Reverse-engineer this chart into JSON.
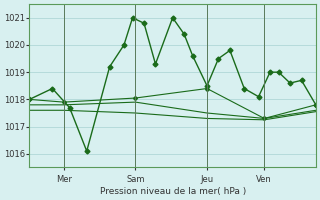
{
  "background_color": "#d8f0f0",
  "grid_color": "#b0d8d8",
  "line_color": "#1a6b1a",
  "ylim": [
    1015.5,
    1021.5
  ],
  "yticks": [
    1016,
    1017,
    1018,
    1019,
    1020,
    1021
  ],
  "xlabel": "Pression niveau de la mer( hPa )",
  "day_labels": [
    "Mer",
    "Sam",
    "Jeu",
    "Ven"
  ],
  "day_positions": [
    0.12,
    0.37,
    0.62,
    0.82
  ],
  "series1_x": [
    0.0,
    0.08,
    0.14,
    0.2,
    0.28,
    0.33,
    0.36,
    0.4,
    0.44,
    0.5,
    0.54,
    0.57,
    0.62,
    0.66,
    0.7,
    0.75,
    0.8,
    0.84,
    0.87,
    0.91,
    0.95,
    1.0
  ],
  "series1_y": [
    1018.0,
    1018.4,
    1017.7,
    1016.1,
    1019.2,
    1020.0,
    1021.0,
    1020.8,
    1019.3,
    1021.0,
    1020.4,
    1019.6,
    1018.5,
    1019.5,
    1019.8,
    1018.4,
    1018.1,
    1019.0,
    1019.0,
    1018.6,
    1018.7,
    1017.8
  ],
  "series2_x": [
    0.0,
    0.12,
    0.37,
    0.62,
    0.82,
    1.0
  ],
  "series2_y": [
    1018.0,
    1017.9,
    1018.05,
    1018.4,
    1017.3,
    1017.8
  ],
  "series3_x": [
    0.0,
    0.12,
    0.37,
    0.62,
    0.82,
    1.0
  ],
  "series3_y": [
    1017.8,
    1017.8,
    1017.9,
    1017.5,
    1017.3,
    1017.6
  ],
  "series4_x": [
    0.0,
    0.12,
    0.37,
    0.62,
    0.82,
    1.0
  ],
  "series4_y": [
    1017.6,
    1017.6,
    1017.5,
    1017.3,
    1017.25,
    1017.55
  ]
}
